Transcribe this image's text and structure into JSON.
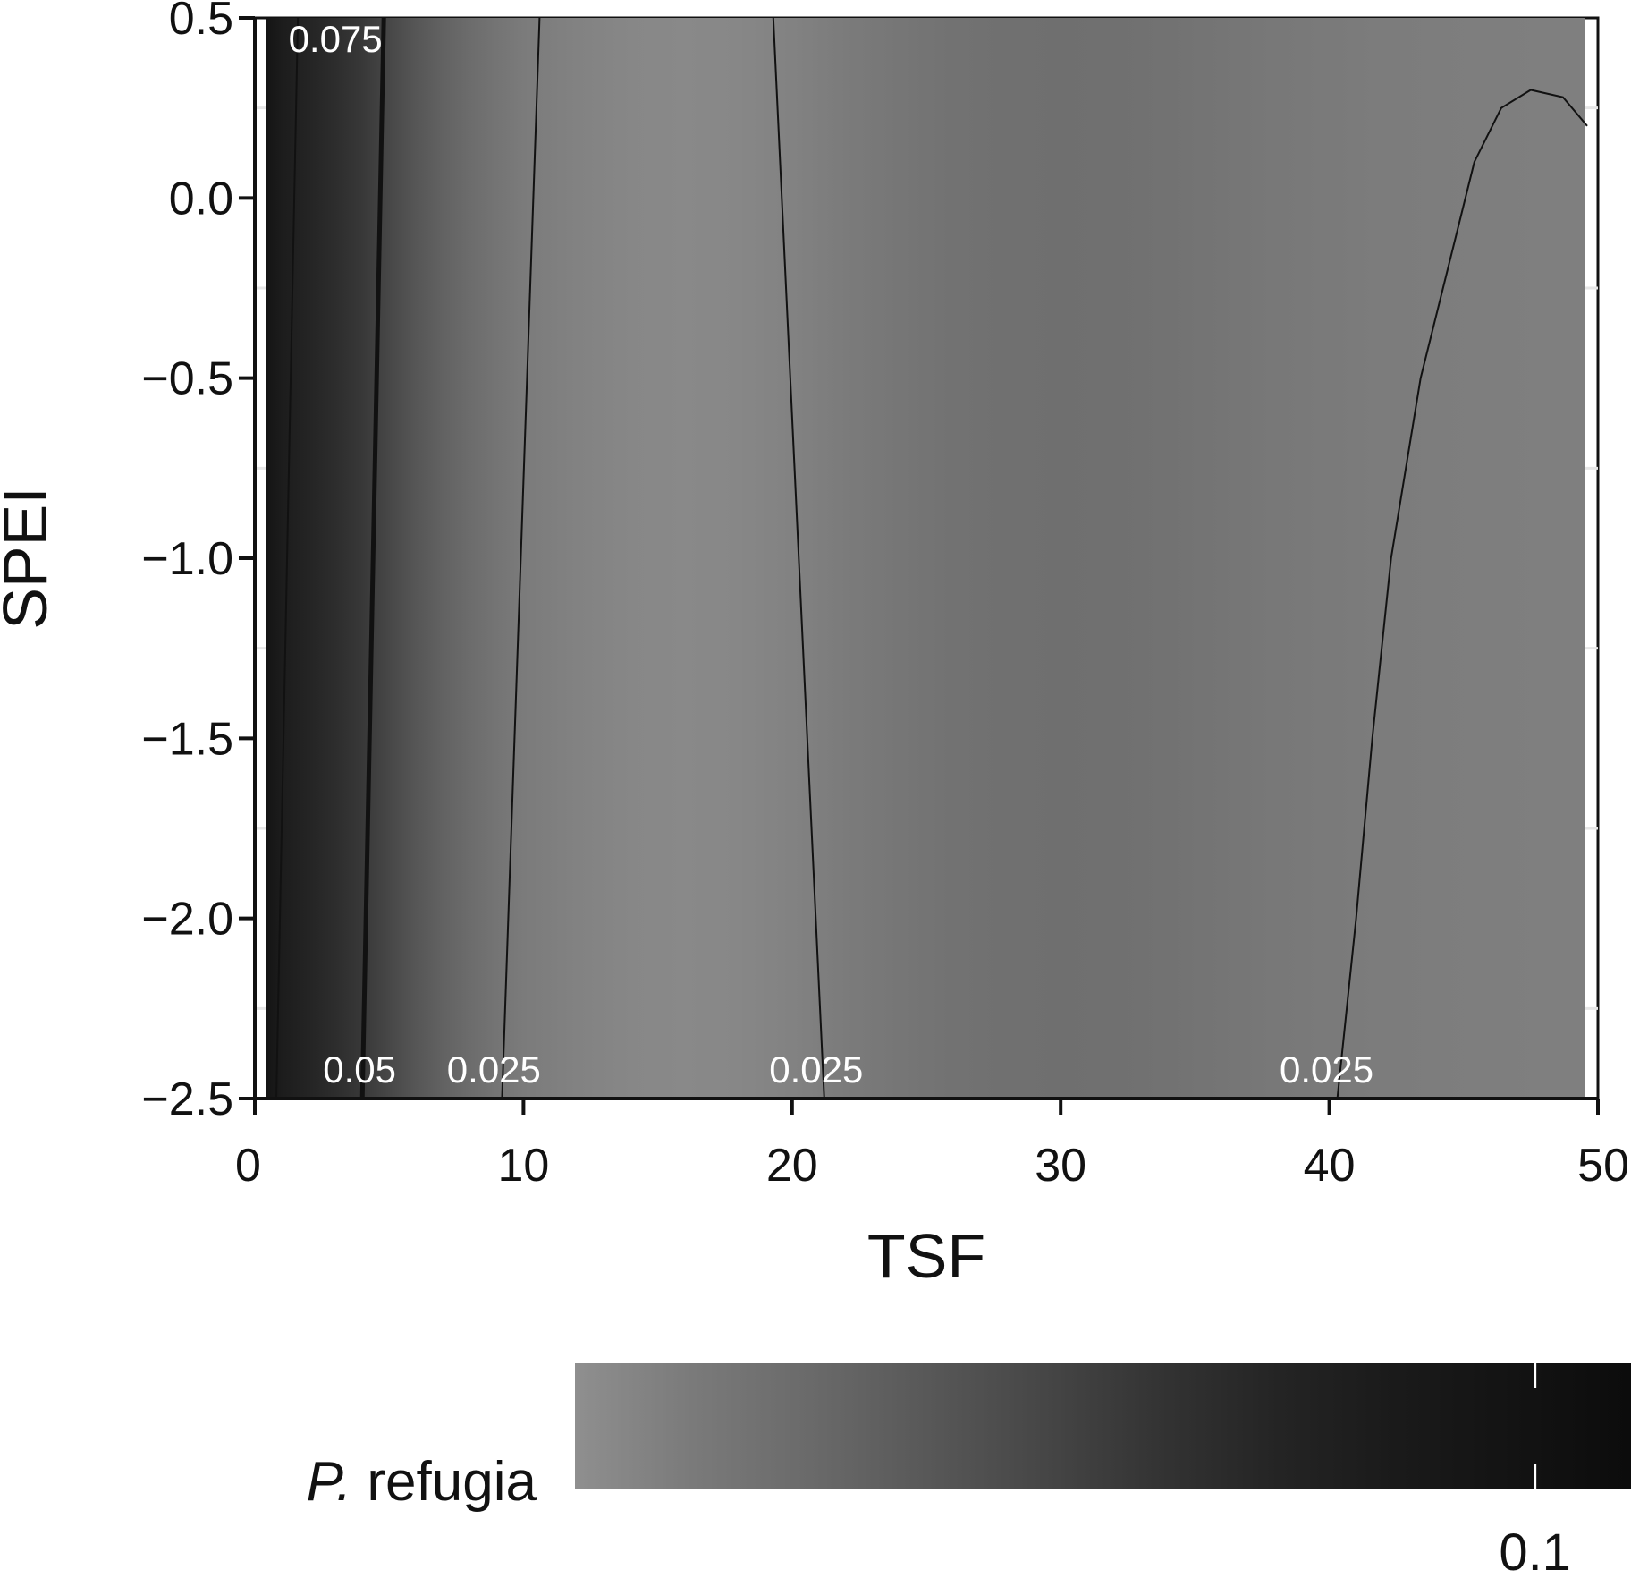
{
  "chart_data": {
    "type": "heatmap",
    "xlabel": "TSF",
    "ylabel": "SPEI",
    "xlim": [
      0,
      50
    ],
    "ylim": [
      -2.5,
      0.5
    ],
    "x_ticks": [
      "0",
      "10",
      "20",
      "30",
      "40",
      "50"
    ],
    "y_ticks": [
      "0.5",
      "0.0",
      "−0.5",
      "−1.0",
      "−1.5",
      "−2.0",
      "−2.5"
    ],
    "x_tick_values": [
      0,
      10,
      20,
      30,
      40,
      50
    ],
    "y_tick_values": [
      0.5,
      0.0,
      -0.5,
      -1.0,
      -1.5,
      -2.0,
      -2.5
    ],
    "fill_profile": {
      "tsf": [
        0,
        0.5,
        1,
        2,
        3,
        4,
        5,
        6,
        7,
        8,
        9,
        10,
        12,
        14,
        16,
        18,
        20,
        22,
        24,
        26,
        28,
        30,
        32,
        34,
        36,
        38,
        40,
        42,
        44,
        46,
        48,
        49.5
      ],
      "colors": [
        "#111111",
        "#151515",
        "#1c1c1c",
        "#242424",
        "#2d2d2d",
        "#383838",
        "#474747",
        "#565656",
        "#626262",
        "#6c6c6c",
        "#747474",
        "#7b7b7b",
        "#828282",
        "#878787",
        "#898989",
        "#878787",
        "#828282",
        "#7b7b7b",
        "#767676",
        "#727272",
        "#707070",
        "#6f6f6f",
        "#707070",
        "#727272",
        "#757575",
        "#787878",
        "#7a7a7a",
        "#7c7c7c",
        "#7d7d7d",
        "#7e7e7e",
        "#7f7f7f",
        "#7f7f7f"
      ]
    },
    "contours": [
      {
        "label": "0.075",
        "points": [
          [
            0.8,
            -2.5
          ],
          [
            1.6,
            0.5
          ]
        ]
      },
      {
        "label": "0.05",
        "points": [
          [
            4.0,
            -2.5
          ],
          [
            4.8,
            0.5
          ]
        ]
      },
      {
        "label": "0.025",
        "points": [
          [
            9.2,
            -2.5
          ],
          [
            10.6,
            0.5
          ]
        ]
      },
      {
        "label": "0.025",
        "points": [
          [
            21.2,
            -2.5
          ],
          [
            19.3,
            0.5
          ]
        ]
      },
      {
        "label": "0.025",
        "points": [
          [
            40.3,
            -2.5
          ],
          [
            41.0,
            -2.0
          ],
          [
            41.6,
            -1.5
          ],
          [
            42.3,
            -1.0
          ],
          [
            43.4,
            -0.5
          ],
          [
            44.4,
            -0.2
          ],
          [
            45.4,
            0.1
          ],
          [
            46.4,
            0.25
          ],
          [
            47.5,
            0.3
          ],
          [
            48.7,
            0.28
          ],
          [
            49.6,
            0.2
          ]
        ]
      }
    ],
    "contour_labels": [
      {
        "text": "0.075",
        "x": 3.0,
        "y": 0.44
      },
      {
        "text": "0.05",
        "x": 3.9,
        "y": -2.42
      },
      {
        "text": "0.025",
        "x": 8.9,
        "y": -2.42
      },
      {
        "text": "0.025",
        "x": 20.9,
        "y": -2.42
      },
      {
        "text": "0.025",
        "x": 39.9,
        "y": -2.42
      }
    ],
    "colorbar": {
      "title_italic": "P.",
      "title_rest": " refugia",
      "tick_label": "0.1",
      "range": [
        0.0,
        0.11
      ],
      "tick_value": 0.1,
      "colors": [
        "#8f8f8f",
        "#7a7a7a",
        "#6a6a6a",
        "#585858",
        "#464646",
        "#333333",
        "#242424",
        "#1a1a1a",
        "#131313",
        "#0c0c0c"
      ]
    }
  }
}
